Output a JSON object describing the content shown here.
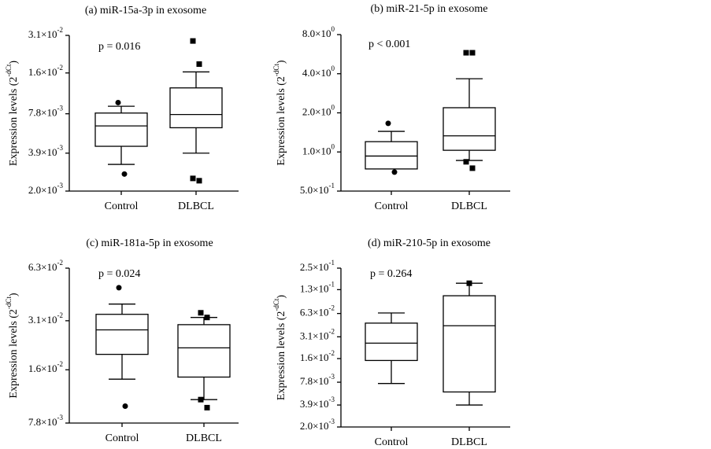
{
  "chart_data": [
    {
      "type": "box",
      "title": "(a) miR-15a-3p in exosome",
      "annotation": "p = 0.016",
      "ylabel": "Expression levels (2",
      "ylabel_sup": "-dCt",
      "ylabel_end": ")",
      "categories": [
        "Control",
        "DLBCL"
      ],
      "markers": [
        "circle",
        "square"
      ],
      "color": "#000000",
      "log": true,
      "whisker_low": [
        0.0032,
        0.0039
      ],
      "q1": [
        0.0044,
        0.0061
      ],
      "median": [
        0.0063,
        0.0077
      ],
      "q3": [
        0.0079,
        0.0123
      ],
      "whisker_high": [
        0.0089,
        0.0163
      ],
      "outliers": [
        [
          0.0095,
          0.0027
        ],
        [
          0.0281,
          0.0187,
          0.0025,
          0.0024
        ]
      ],
      "ylim": [
        0.002,
        0.031
      ],
      "yticks": [
        {
          "value": 0.002,
          "label": "2.0×10",
          "exp": "-3"
        },
        {
          "value": 0.0039,
          "label": "3.9×10",
          "exp": "-3"
        },
        {
          "value": 0.0078,
          "label": "7.8×10",
          "exp": "-3"
        },
        {
          "value": 0.016,
          "label": "1.6×10",
          "exp": "-2"
        },
        {
          "value": 0.031,
          "label": "3.1×10",
          "exp": "-2"
        }
      ]
    },
    {
      "type": "box",
      "title": "(b) miR-21-5p in exosome",
      "annotation": "p < 0.001",
      "ylabel": "Expression levels (2",
      "ylabel_sup": "-dCt",
      "ylabel_end": ")",
      "categories": [
        "Control",
        "DLBCL"
      ],
      "markers": [
        "circle",
        "square"
      ],
      "color": "#000000",
      "log": true,
      "whisker_low": [
        0.74,
        0.86
      ],
      "q1": [
        0.74,
        1.03
      ],
      "median": [
        0.93,
        1.33
      ],
      "q3": [
        1.2,
        2.19
      ],
      "whisker_high": [
        1.44,
        3.66
      ],
      "outliers": [
        [
          1.66,
          0.7
        ],
        [
          5.8,
          5.8,
          0.84,
          0.75
        ]
      ],
      "ylim": [
        0.5,
        8
      ],
      "yticks": [
        {
          "value": 0.5,
          "label": "5.0×10",
          "exp": "-1"
        },
        {
          "value": 1,
          "label": "1.0×10",
          "exp": "0"
        },
        {
          "value": 2,
          "label": "2.0×10",
          "exp": "0"
        },
        {
          "value": 4,
          "label": "4.0×10",
          "exp": "0"
        },
        {
          "value": 8,
          "label": "8.0×10",
          "exp": "0"
        }
      ]
    },
    {
      "type": "box",
      "title": "(c) miR-181a-5p in exosome",
      "annotation": "p = 0.024",
      "ylabel": "Expression levels (2",
      "ylabel_sup": "-dCt",
      "ylabel_end": ")",
      "categories": [
        "Control",
        "DLBCL"
      ],
      "markers": [
        "circle",
        "square"
      ],
      "color": "#000000",
      "log": true,
      "whisker_low": [
        0.0141,
        0.0107
      ],
      "q1": [
        0.0197,
        0.0145
      ],
      "median": [
        0.0274,
        0.0215
      ],
      "q3": [
        0.0338,
        0.0294
      ],
      "whisker_high": [
        0.0388,
        0.0324
      ],
      "outliers": [
        [
          0.0484,
          0.0098
        ],
        [
          0.0345,
          0.0324,
          0.0107,
          0.0096
        ]
      ],
      "ylim": [
        0.0078,
        0.063
      ],
      "yticks": [
        {
          "value": 0.0078,
          "label": "7.8×10",
          "exp": "-3"
        },
        {
          "value": 0.016,
          "label": "1.6×10",
          "exp": "-2"
        },
        {
          "value": 0.031,
          "label": "3.1×10",
          "exp": "-2"
        },
        {
          "value": 0.063,
          "label": "6.3×10",
          "exp": "-2"
        }
      ]
    },
    {
      "type": "box",
      "title": "(d) miR-210-5p in exosome",
      "annotation": "p = 0.264",
      "ylabel": "Expression levels (2",
      "ylabel_sup": "-dCt",
      "ylabel_end": ")",
      "categories": [
        "Control",
        "DLBCL"
      ],
      "markers": [
        "circle",
        "square"
      ],
      "color": "#000000",
      "log": true,
      "whisker_low": [
        0.0075,
        0.0039
      ],
      "q1": [
        0.0151,
        0.0058
      ],
      "median": [
        0.0256,
        0.0434
      ],
      "q3": [
        0.047,
        0.108
      ],
      "whisker_high": [
        0.064,
        0.158
      ],
      "outliers": [
        [],
        [
          0.158
        ]
      ],
      "ylim": [
        0.002,
        0.25
      ],
      "yticks": [
        {
          "value": 0.002,
          "label": "2.0×10",
          "exp": "-3"
        },
        {
          "value": 0.0039,
          "label": "3.9×10",
          "exp": "-3"
        },
        {
          "value": 0.0078,
          "label": "7.8×10",
          "exp": "-3"
        },
        {
          "value": 0.016,
          "label": "1.6×10",
          "exp": "-2"
        },
        {
          "value": 0.031,
          "label": "3.1×10",
          "exp": "-2"
        },
        {
          "value": 0.063,
          "label": "6.3×10",
          "exp": "-2"
        },
        {
          "value": 0.13,
          "label": "1.3×10",
          "exp": "-1"
        },
        {
          "value": 0.25,
          "label": "2.5×10",
          "exp": "-1"
        }
      ]
    }
  ]
}
